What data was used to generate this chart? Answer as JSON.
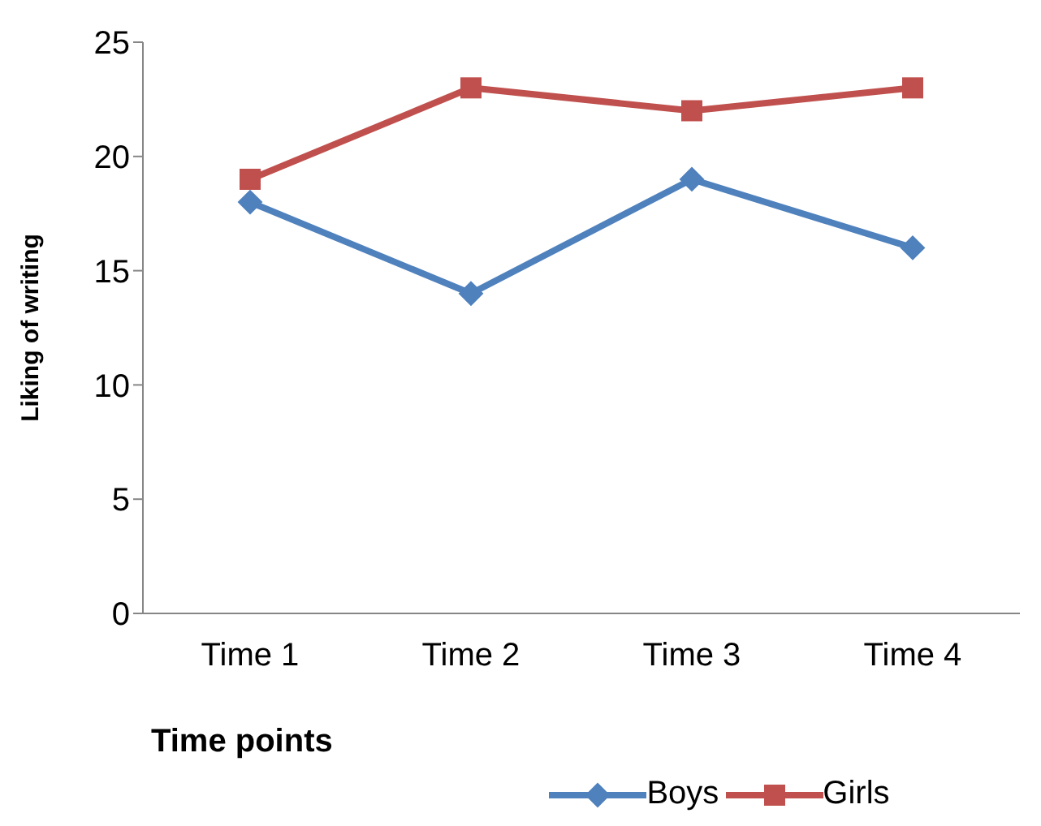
{
  "chart_data": {
    "type": "line",
    "xlabel": "Time points",
    "ylabel": "Liking of writing",
    "categories": [
      "Time 1",
      "Time 2",
      "Time 3",
      "Time 4"
    ],
    "series": [
      {
        "name": "Boys",
        "color": "#4f81bd",
        "marker": "diamond",
        "values": [
          18,
          14,
          19,
          16
        ]
      },
      {
        "name": "Girls",
        "color": "#c0504d",
        "marker": "square",
        "values": [
          19,
          23,
          22,
          23
        ]
      }
    ],
    "ylim": [
      0,
      25
    ],
    "yticks": [
      0,
      5,
      10,
      15,
      20,
      25
    ],
    "grid": false,
    "legend": "bottom",
    "line_style": "solid"
  }
}
